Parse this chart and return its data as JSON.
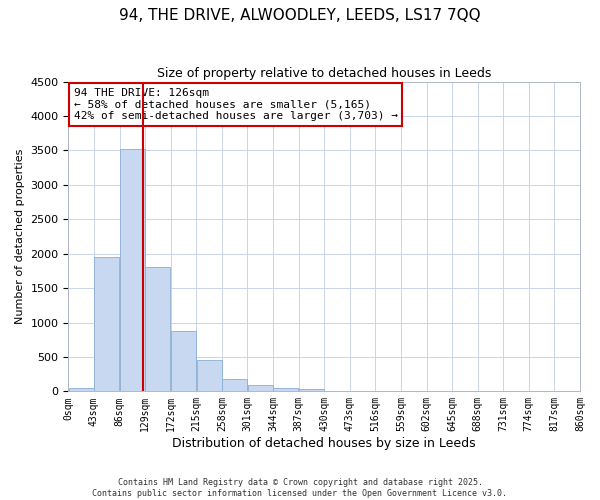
{
  "title": "94, THE DRIVE, ALWOODLEY, LEEDS, LS17 7QQ",
  "subtitle": "Size of property relative to detached houses in Leeds",
  "xlabel": "Distribution of detached houses by size in Leeds",
  "ylabel": "Number of detached properties",
  "bar_color": "#c8d8f0",
  "bar_edge_color": "#8aaed4",
  "background_color": "#ffffff",
  "grid_color": "#c8d4e8",
  "bin_edges": [
    0,
    43,
    86,
    129,
    172,
    215,
    258,
    301,
    344,
    387,
    430,
    473,
    516,
    559,
    602,
    645,
    688,
    731,
    774,
    817,
    860
  ],
  "bar_heights": [
    50,
    1950,
    3520,
    1800,
    870,
    450,
    175,
    95,
    50,
    30,
    5,
    0,
    0,
    0,
    0,
    0,
    0,
    0,
    0,
    0
  ],
  "tick_labels": [
    "0sqm",
    "43sqm",
    "86sqm",
    "129sqm",
    "172sqm",
    "215sqm",
    "258sqm",
    "301sqm",
    "344sqm",
    "387sqm",
    "430sqm",
    "473sqm",
    "516sqm",
    "559sqm",
    "602sqm",
    "645sqm",
    "688sqm",
    "731sqm",
    "774sqm",
    "817sqm",
    "860sqm"
  ],
  "ylim": [
    0,
    4500
  ],
  "yticks": [
    0,
    500,
    1000,
    1500,
    2000,
    2500,
    3000,
    3500,
    4000,
    4500
  ],
  "property_line_x": 126,
  "property_line_color": "#cc0000",
  "annotation_line1": "94 THE DRIVE: 126sqm",
  "annotation_line2": "← 58% of detached houses are smaller (5,165)",
  "annotation_line3": "42% of semi-detached houses are larger (3,703) →",
  "annotation_box_color": "#ffffff",
  "annotation_box_edge_color": "#cc0000",
  "footer_line1": "Contains HM Land Registry data © Crown copyright and database right 2025.",
  "footer_line2": "Contains public sector information licensed under the Open Government Licence v3.0."
}
